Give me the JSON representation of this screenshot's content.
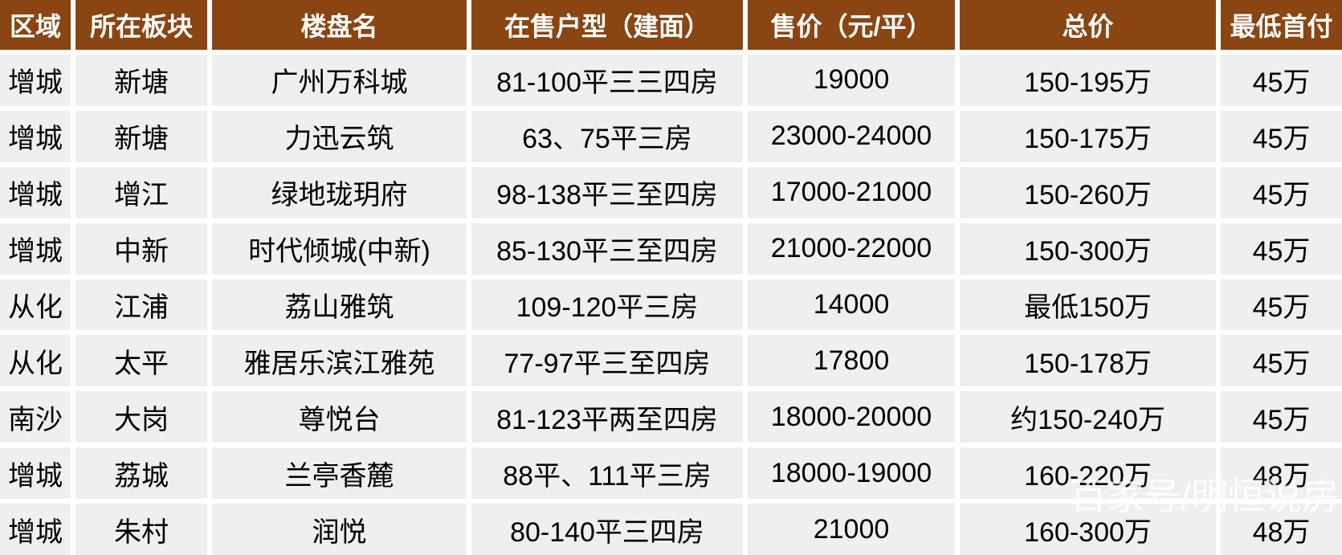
{
  "chart_data": {
    "type": "table",
    "columns": [
      "区域",
      "所在板块",
      "楼盘名",
      "在售户型（建面）",
      "售价（元/平）",
      "总价",
      "最低首付"
    ],
    "rows": [
      [
        "增城",
        "新塘",
        "广州万科城",
        "81-100平三三四房",
        "19000",
        "150-195万",
        "45万"
      ],
      [
        "增城",
        "新塘",
        "力迅云筑",
        "63、75平三房",
        "23000-24000",
        "150-175万",
        "45万"
      ],
      [
        "增城",
        "增江",
        "绿地珑玥府",
        "98-138平三至四房",
        "17000-21000",
        "150-260万",
        "45万"
      ],
      [
        "增城",
        "中新",
        "时代倾城(中新)",
        "85-130平三至四房",
        "21000-22000",
        "150-300万",
        "45万"
      ],
      [
        "从化",
        "江浦",
        "荔山雅筑",
        "109-120平三房",
        "14000",
        "最低150万",
        "45万"
      ],
      [
        "从化",
        "太平",
        "雅居乐滨江雅苑",
        "77-97平三至四房",
        "17800",
        "150-178万",
        "45万"
      ],
      [
        "南沙",
        "大岗",
        "尊悦台",
        "81-123平两至四房",
        "18000-20000",
        "约150-240万",
        "45万"
      ],
      [
        "增城",
        "荔城",
        "兰亭香麓",
        "88平、111平三房",
        "18000-19000",
        "160-220万",
        "48万"
      ],
      [
        "增城",
        "朱村",
        "润悦",
        "80-140平三四房",
        "21000",
        "160-300万",
        "48万"
      ]
    ],
    "layout": {
      "header_position": "top",
      "grid": "white-gaps"
    }
  },
  "watermark": "百家号/明恒说房",
  "colors": {
    "header_bg": "#8a4513",
    "header_text": "#ffffff",
    "cell_bg": "#efefef",
    "cell_text": "#000000",
    "divider": "#ffffff"
  }
}
